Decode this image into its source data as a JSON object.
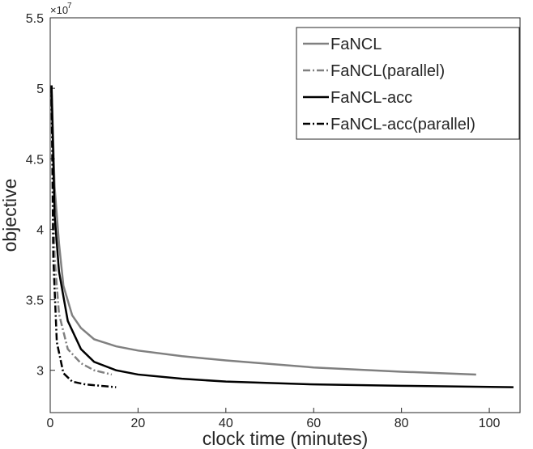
{
  "chart_data": {
    "type": "line",
    "x_label": "clock time (minutes)",
    "y_label": "objective",
    "y_multiplier": {
      "base": "×10",
      "power": "7"
    },
    "xlim": [
      0,
      107
    ],
    "xticks": [
      0,
      20,
      40,
      60,
      80,
      100
    ],
    "ylim": [
      2.7,
      5.5
    ],
    "yticks": [
      3,
      3.5,
      4,
      4.5,
      5,
      5.5
    ],
    "legend": "upper right",
    "series": [
      {
        "name": "FaNCL",
        "color": "#808080",
        "style": "solid",
        "x": [
          0.3,
          1,
          2,
          3,
          5,
          7,
          10,
          15,
          20,
          30,
          40,
          60,
          80,
          97
        ],
        "values": [
          5.02,
          4.3,
          3.9,
          3.6,
          3.39,
          3.3,
          3.22,
          3.17,
          3.14,
          3.1,
          3.07,
          3.02,
          2.99,
          2.97
        ]
      },
      {
        "name": "FaNCL(parallel)",
        "color": "#808080",
        "style": "dash-dot",
        "x": [
          0.3,
          1,
          2,
          4,
          7,
          10,
          14
        ],
        "values": [
          5.02,
          3.8,
          3.4,
          3.15,
          3.05,
          3.0,
          2.97
        ]
      },
      {
        "name": "FaNCL-acc",
        "color": "#000000",
        "style": "solid",
        "x": [
          0.3,
          1,
          2,
          4,
          7,
          10,
          15,
          20,
          30,
          40,
          60,
          80,
          105.5
        ],
        "values": [
          5.02,
          4.1,
          3.7,
          3.35,
          3.15,
          3.06,
          3.0,
          2.97,
          2.94,
          2.92,
          2.9,
          2.89,
          2.88
        ]
      },
      {
        "name": "FaNCL-acc(parallel)",
        "color": "#000000",
        "style": "dash-dot",
        "x": [
          0.3,
          0.7,
          1.5,
          3,
          5,
          8,
          15
        ],
        "values": [
          5.02,
          3.8,
          3.2,
          2.98,
          2.92,
          2.9,
          2.88
        ]
      }
    ]
  }
}
